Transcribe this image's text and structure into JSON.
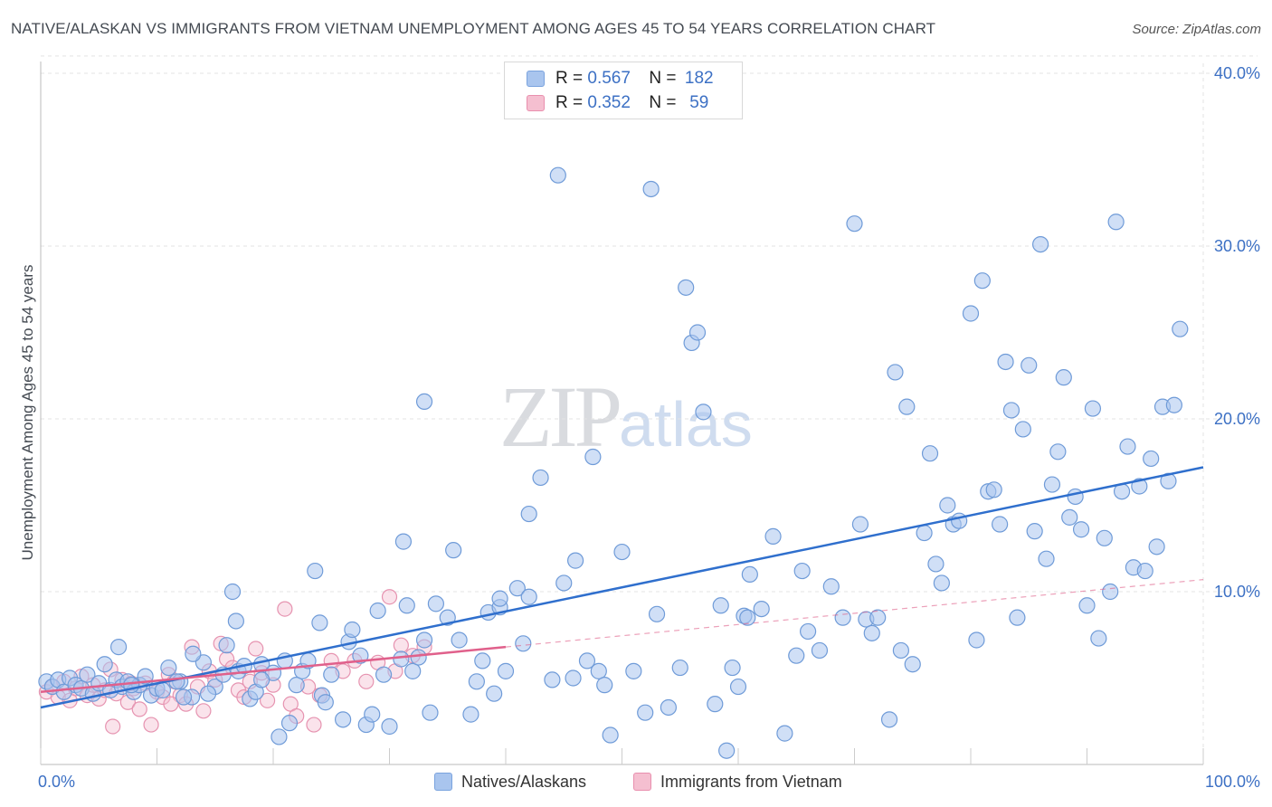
{
  "title": "NATIVE/ALASKAN VS IMMIGRANTS FROM VIETNAM UNEMPLOYMENT AMONG AGES 45 TO 54 YEARS CORRELATION CHART",
  "source": "Source: ZipAtlas.com",
  "watermark": {
    "zip": "ZIP",
    "atlas": "atlas"
  },
  "legend": {
    "r_label": "R =",
    "n_label": "N =",
    "rows": [
      {
        "r": "0.567",
        "n": "182",
        "color": "#a9c5ee",
        "border": "#7aa3de"
      },
      {
        "r": "0.352",
        "n": "59",
        "color": "#f5bfd0",
        "border": "#e98fae"
      }
    ]
  },
  "bottom_legend": {
    "series1": "Natives/Alaskans",
    "series2": "Immigrants from Vietnam"
  },
  "colors": {
    "blue_fill": "#a9c5ee",
    "blue_stroke": "#6f9bd8",
    "blue_line": "#2f6fcd",
    "pink_fill": "#f5c2d2",
    "pink_stroke": "#e693b0",
    "pink_line": "#e0608b",
    "axis_text": "#3c70c4"
  },
  "chart_data": {
    "type": "scatter",
    "title": "NATIVE/ALASKAN VS IMMIGRANTS FROM VIETNAM UNEMPLOYMENT AMONG AGES 45 TO 54 YEARS CORRELATION CHART",
    "xlabel": "",
    "ylabel": "Unemployment Among Ages 45 to 54 years",
    "xlim": [
      0,
      100
    ],
    "ylim": [
      0,
      41
    ],
    "x_tick_labels": [
      "0.0%",
      "100.0%"
    ],
    "y_ticks": [
      10,
      20,
      30,
      40
    ],
    "y_tick_labels": [
      "10.0%",
      "20.0%",
      "30.0%",
      "40.0%"
    ],
    "grid": true,
    "series": [
      {
        "name": "Natives/Alaskans",
        "r": 0.567,
        "n": 182,
        "trend": {
          "x0": 0,
          "y0": 3.3,
          "x1": 100,
          "y1": 17.2
        },
        "points": [
          [
            0.5,
            4.8
          ],
          [
            1,
            4.5
          ],
          [
            1.5,
            4.9
          ],
          [
            2,
            4.2
          ],
          [
            2.5,
            5
          ],
          [
            3,
            4.6
          ],
          [
            3.5,
            4.4
          ],
          [
            4,
            5.2
          ],
          [
            4.5,
            4.1
          ],
          [
            5,
            4.7
          ],
          [
            5.5,
            5.8
          ],
          [
            6,
            4.3
          ],
          [
            6.5,
            4.9
          ],
          [
            7,
            4.5
          ],
          [
            7.5,
            4.8
          ],
          [
            8,
            4.2
          ],
          [
            8.5,
            4.6
          ],
          [
            9,
            5.1
          ],
          [
            9.5,
            4
          ],
          [
            10,
            4.4
          ],
          [
            11,
            5.6
          ],
          [
            12,
            4.8
          ],
          [
            13,
            3.9
          ],
          [
            14,
            5.9
          ],
          [
            15,
            4.5
          ],
          [
            16,
            6.9
          ],
          [
            17,
            5.4
          ],
          [
            18,
            3.8
          ],
          [
            19,
            5.8
          ],
          [
            20,
            5.3
          ],
          [
            6.7,
            6.8
          ],
          [
            7.8,
            4.6
          ],
          [
            10.5,
            4.3
          ],
          [
            11.7,
            4.8
          ],
          [
            12.3,
            3.9
          ],
          [
            13.1,
            6.4
          ],
          [
            14.4,
            4.1
          ],
          [
            15.7,
            5.2
          ],
          [
            16.8,
            8.3
          ],
          [
            17.5,
            5.7
          ],
          [
            16.5,
            10
          ],
          [
            18.5,
            4.2
          ],
          [
            19,
            4.9
          ],
          [
            20.5,
            1.6
          ],
          [
            21,
            6
          ],
          [
            21.4,
            2.4
          ],
          [
            22,
            4.6
          ],
          [
            22.5,
            5.4
          ],
          [
            23,
            6
          ],
          [
            24.2,
            4
          ],
          [
            23.6,
            11.2
          ],
          [
            24.5,
            3.6
          ],
          [
            25,
            5.2
          ],
          [
            24,
            8.2
          ],
          [
            26,
            2.6
          ],
          [
            26.5,
            7.1
          ],
          [
            26.8,
            7.8
          ],
          [
            27.5,
            6.3
          ],
          [
            28,
            2.3
          ],
          [
            28.5,
            2.9
          ],
          [
            29,
            8.9
          ],
          [
            29.5,
            5.2
          ],
          [
            30,
            2.2
          ],
          [
            31,
            6.1
          ],
          [
            31.5,
            9.2
          ],
          [
            32,
            5.4
          ],
          [
            32.5,
            6.2
          ],
          [
            33,
            7.2
          ],
          [
            33.5,
            3
          ],
          [
            34,
            9.3
          ],
          [
            35,
            8.5
          ],
          [
            35.5,
            12.4
          ],
          [
            36,
            7.2
          ],
          [
            37,
            2.9
          ],
          [
            37.5,
            4.8
          ],
          [
            38,
            6
          ],
          [
            38.5,
            8.8
          ],
          [
            39,
            4.1
          ],
          [
            39.5,
            9.1
          ],
          [
            40,
            5.4
          ],
          [
            41,
            10.2
          ],
          [
            41.5,
            7
          ],
          [
            42,
            9.7
          ],
          [
            43,
            16.6
          ],
          [
            44,
            4.9
          ],
          [
            45,
            10.5
          ],
          [
            46,
            11.8
          ],
          [
            47,
            6
          ],
          [
            47.5,
            17.8
          ],
          [
            48,
            5.4
          ],
          [
            48.5,
            4.6
          ],
          [
            49,
            1.7
          ],
          [
            50,
            12.3
          ],
          [
            51,
            5.4
          ],
          [
            52,
            3
          ],
          [
            53,
            8.7
          ],
          [
            54,
            3.3
          ],
          [
            55,
            5.6
          ],
          [
            55.5,
            27.6
          ],
          [
            56,
            24.4
          ],
          [
            56.5,
            25
          ],
          [
            57,
            20.4
          ],
          [
            58,
            3.5
          ],
          [
            58.5,
            9.2
          ],
          [
            59,
            0.8
          ],
          [
            59.5,
            5.6
          ],
          [
            60,
            4.5
          ],
          [
            60.5,
            8.6
          ],
          [
            61,
            11
          ],
          [
            62,
            9
          ],
          [
            63,
            13.2
          ],
          [
            64,
            1.8
          ],
          [
            65,
            6.3
          ],
          [
            65.5,
            11.2
          ],
          [
            66,
            7.7
          ],
          [
            67,
            6.6
          ],
          [
            68,
            10.3
          ],
          [
            69,
            8.5
          ],
          [
            70,
            31.3
          ],
          [
            70.5,
            13.9
          ],
          [
            71,
            8.4
          ],
          [
            71.5,
            7.6
          ],
          [
            72,
            8.5
          ],
          [
            73,
            2.6
          ],
          [
            73.5,
            22.7
          ],
          [
            74,
            6.6
          ],
          [
            74.5,
            20.7
          ],
          [
            75,
            5.8
          ],
          [
            76,
            13.4
          ],
          [
            76.5,
            18
          ],
          [
            77,
            11.6
          ],
          [
            77.5,
            10.5
          ],
          [
            78,
            15
          ],
          [
            78.5,
            13.9
          ],
          [
            79,
            14.1
          ],
          [
            80,
            26.1
          ],
          [
            80.5,
            7.2
          ],
          [
            81,
            28
          ],
          [
            81.5,
            15.8
          ],
          [
            82,
            15.9
          ],
          [
            82.5,
            13.9
          ],
          [
            83,
            23.3
          ],
          [
            83.5,
            20.5
          ],
          [
            84,
            8.5
          ],
          [
            84.5,
            19.4
          ],
          [
            85,
            23.1
          ],
          [
            85.5,
            13.5
          ],
          [
            86,
            30.1
          ],
          [
            86.5,
            11.9
          ],
          [
            87,
            16.2
          ],
          [
            87.5,
            18.1
          ],
          [
            88,
            22.4
          ],
          [
            88.5,
            14.3
          ],
          [
            89,
            15.5
          ],
          [
            89.5,
            13.6
          ],
          [
            90,
            9.2
          ],
          [
            90.5,
            20.6
          ],
          [
            91,
            7.3
          ],
          [
            91.5,
            13.1
          ],
          [
            92,
            10
          ],
          [
            92.5,
            31.4
          ],
          [
            93,
            15.8
          ],
          [
            93.5,
            18.4
          ],
          [
            94,
            11.4
          ],
          [
            94.5,
            16.1
          ],
          [
            95,
            11.2
          ],
          [
            95.5,
            17.7
          ],
          [
            96,
            12.6
          ],
          [
            96.5,
            20.7
          ],
          [
            97,
            16.4
          ],
          [
            97.5,
            20.8
          ],
          [
            98,
            25.2
          ],
          [
            44.5,
            34.1
          ],
          [
            52.5,
            33.3
          ],
          [
            33,
            21
          ],
          [
            42,
            14.5
          ],
          [
            39.5,
            9.6
          ],
          [
            31.2,
            12.9
          ],
          [
            60.8,
            8.5
          ],
          [
            45.8,
            5
          ]
        ]
      },
      {
        "name": "Immigrants from Vietnam",
        "r": 0.352,
        "n": 59,
        "trend": {
          "x0": 0,
          "y0": 4.2,
          "x1": 40,
          "y1": 6.8
        },
        "trend_extension": {
          "x0": 40,
          "y0": 6.8,
          "x1": 100,
          "y1": 10.7
        },
        "points": [
          [
            0.5,
            4.2
          ],
          [
            1,
            4.5
          ],
          [
            1.5,
            3.9
          ],
          [
            2,
            4.8
          ],
          [
            2.5,
            3.7
          ],
          [
            3,
            4.4
          ],
          [
            3.5,
            5.1
          ],
          [
            4,
            4
          ],
          [
            4.5,
            4.6
          ],
          [
            5,
            3.8
          ],
          [
            5.5,
            4.3
          ],
          [
            6,
            5.5
          ],
          [
            6.5,
            4.1
          ],
          [
            7,
            4.9
          ],
          [
            7.5,
            3.6
          ],
          [
            8,
            4.4
          ],
          [
            8.5,
            3.2
          ],
          [
            9,
            4.7
          ],
          [
            9.5,
            2.3
          ],
          [
            10,
            4.2
          ],
          [
            10.5,
            3.9
          ],
          [
            11,
            5.2
          ],
          [
            11.5,
            4.8
          ],
          [
            12,
            4
          ],
          [
            12.5,
            3.5
          ],
          [
            13,
            6.8
          ],
          [
            13.5,
            4.5
          ],
          [
            14,
            3.1
          ],
          [
            14.5,
            5.4
          ],
          [
            15,
            4.9
          ],
          [
            15.5,
            7
          ],
          [
            16,
            6.1
          ],
          [
            16.5,
            5.6
          ],
          [
            17,
            4.3
          ],
          [
            17.5,
            3.9
          ],
          [
            18,
            4.8
          ],
          [
            18.5,
            6.7
          ],
          [
            19,
            5.3
          ],
          [
            19.5,
            3.7
          ],
          [
            20,
            4.6
          ],
          [
            21,
            9
          ],
          [
            21.5,
            3.5
          ],
          [
            22,
            2.8
          ],
          [
            23,
            4.5
          ],
          [
            23.5,
            2.3
          ],
          [
            24,
            4
          ],
          [
            25,
            6
          ],
          [
            26,
            5.4
          ],
          [
            27,
            6
          ],
          [
            28,
            4.8
          ],
          [
            29,
            5.9
          ],
          [
            30,
            9.7
          ],
          [
            30.5,
            5.4
          ],
          [
            31,
            6.9
          ],
          [
            32,
            6.3
          ],
          [
            33,
            6.8
          ],
          [
            7.8,
            4.7
          ],
          [
            11.2,
            3.5
          ],
          [
            6.2,
            2.2
          ]
        ]
      }
    ]
  }
}
